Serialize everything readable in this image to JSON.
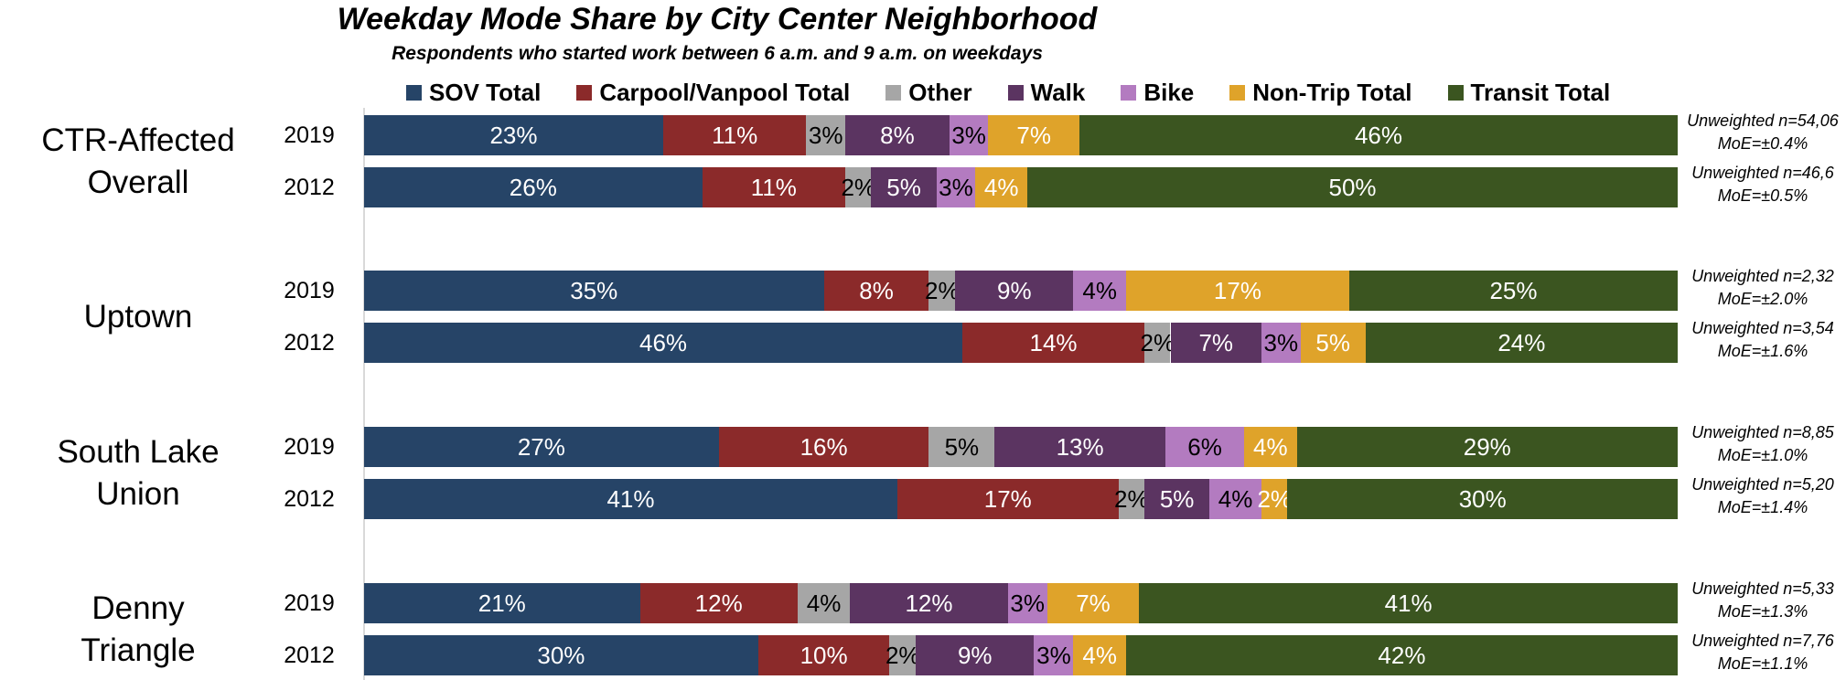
{
  "chart_data": {
    "type": "bar",
    "orientation": "horizontal",
    "stacked": true,
    "normalized": true,
    "title": "Weekday Mode Share by City Center Neighborhood",
    "subtitle": "Respondents who started work between 6 a.m. and 9 a.m. on weekdays",
    "legend": "top",
    "series": [
      {
        "name": "SOV Total",
        "color": "#264467",
        "text_color": "#ffffff"
      },
      {
        "name": "Carpool/Vanpool Total",
        "color": "#8b2a2a",
        "text_color": "#ffffff"
      },
      {
        "name": "Other",
        "color": "#a6a6a6",
        "text_color": "#000000"
      },
      {
        "name": "Walk",
        "color": "#5b3461",
        "text_color": "#ffffff"
      },
      {
        "name": "Bike",
        "color": "#b37bc0",
        "text_color": "#000000"
      },
      {
        "name": "Non-Trip Total",
        "color": "#dfa32a",
        "text_color": "#ffffff"
      },
      {
        "name": "Transit Total",
        "color": "#3b5520",
        "text_color": "#ffffff"
      }
    ],
    "groups": [
      {
        "label": "CTR-Affected Overall",
        "rows": [
          {
            "year": "2019",
            "values": [
              23,
              11,
              3,
              8,
              3,
              7,
              46
            ],
            "note": [
              "Unweighted n=54,06",
              "MoE=±0.4%"
            ]
          },
          {
            "year": "2012",
            "values": [
              26,
              11,
              2,
              5,
              3,
              4,
              50
            ],
            "note": [
              "Unweighted n=46,6",
              "MoE=±0.5%"
            ]
          }
        ]
      },
      {
        "label": "Uptown",
        "rows": [
          {
            "year": "2019",
            "values": [
              35,
              8,
              2,
              9,
              4,
              17,
              25
            ],
            "note": [
              "Unweighted n=2,32",
              "MoE=±2.0%"
            ]
          },
          {
            "year": "2012",
            "values": [
              46,
              14,
              2,
              7,
              3,
              5,
              24
            ],
            "note": [
              "Unweighted n=3,54",
              "MoE=±1.6%"
            ]
          }
        ]
      },
      {
        "label": "South Lake Union",
        "rows": [
          {
            "year": "2019",
            "values": [
              27,
              16,
              5,
              13,
              6,
              4,
              29
            ],
            "note": [
              "Unweighted n=8,85",
              "MoE=±1.0%"
            ]
          },
          {
            "year": "2012",
            "values": [
              41,
              17,
              2,
              5,
              4,
              2,
              30
            ],
            "note": [
              "Unweighted n=5,20",
              "MoE=±1.4%"
            ]
          }
        ]
      },
      {
        "label": "Denny Triangle",
        "rows": [
          {
            "year": "2019",
            "values": [
              21,
              12,
              4,
              12,
              3,
              7,
              41
            ],
            "note": [
              "Unweighted n=5,33",
              "MoE=±1.3%"
            ]
          },
          {
            "year": "2012",
            "values": [
              30,
              10,
              2,
              9,
              3,
              4,
              42
            ],
            "note": [
              "Unweighted n=7,76",
              "MoE=±1.1%"
            ]
          }
        ]
      }
    ],
    "value_suffix": "%"
  }
}
